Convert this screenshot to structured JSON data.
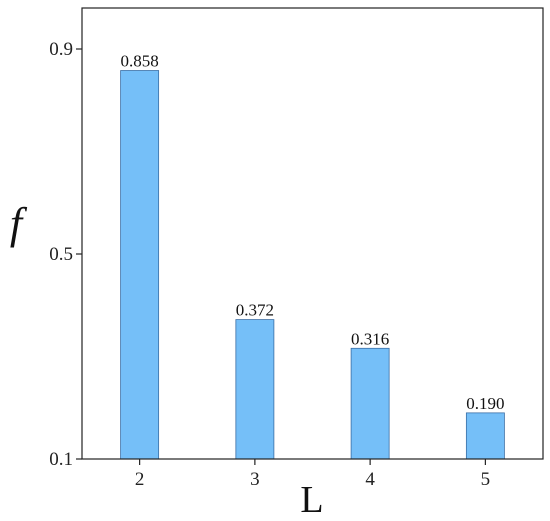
{
  "chart_data": {
    "type": "bar",
    "categories": [
      "2",
      "3",
      "4",
      "5"
    ],
    "values": [
      0.858,
      0.372,
      0.316,
      0.19
    ],
    "value_labels": [
      "0.858",
      "0.372",
      "0.316",
      "0.190"
    ],
    "title": "",
    "xlabel": "L",
    "ylabel": "f",
    "ylim": [
      0.1,
      0.98
    ],
    "yticks": [
      0.1,
      0.5,
      0.9
    ],
    "ytick_labels": [
      "0.1",
      "0.5",
      "0.9"
    ],
    "grid": false,
    "bar_color": "#75bff8",
    "bar_edge_color": "#3a6ea5"
  }
}
